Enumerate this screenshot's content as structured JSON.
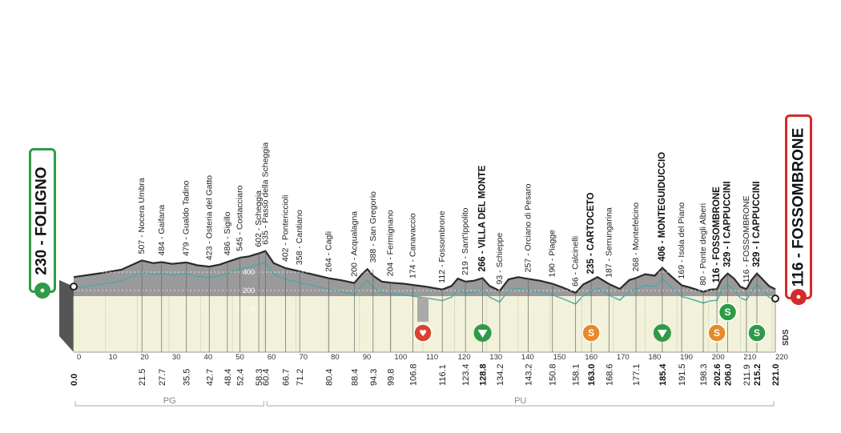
{
  "start": {
    "label": "230 - FOLIGNO",
    "icon": "bicycle-icon",
    "color": "#2f9a48"
  },
  "finish": {
    "label": "116 - FOSSOMBRONE",
    "icon": "bicycle-icon",
    "color": "#d42a2a"
  },
  "profile_colors": {
    "relief": "#9a9a9a",
    "relief_dark": "#2a2a2a",
    "plain": "#f2f2da",
    "line": "#4aa8a8"
  },
  "altitude_ticks": [
    "400",
    "200",
    "0"
  ],
  "km_ticks": [
    "0",
    "10",
    "20",
    "30",
    "40",
    "50",
    "60",
    "70",
    "80",
    "90",
    "100",
    "110",
    "120",
    "130",
    "140",
    "150",
    "160",
    "170",
    "180",
    "190",
    "200",
    "210",
    "220"
  ],
  "regions": [
    {
      "name": "PG"
    },
    {
      "name": "PU"
    }
  ],
  "sds_label": "SDS",
  "waypoints": [
    {
      "name": "Nocera Umbra",
      "alt": "507",
      "km": "21.5",
      "bold": false
    },
    {
      "name": "Gaifana",
      "alt": "484",
      "km": "27.7",
      "bold": false
    },
    {
      "name": "Gualdo Tadino",
      "alt": "479",
      "km": "35.5",
      "bold": false
    },
    {
      "name": "Osteria del Gatto",
      "alt": "423",
      "km": "42.7",
      "bold": false
    },
    {
      "name": "Sigillo",
      "alt": "486",
      "km": "48.4",
      "bold": false
    },
    {
      "name": "Costacciaro",
      "alt": "545",
      "km": "52.4",
      "bold": false
    },
    {
      "name": "Scheggia",
      "alt": "602",
      "km": "58.3",
      "bold": false
    },
    {
      "name": "Passo della Scheggia",
      "alt": "635",
      "km": "60.4",
      "bold": false
    },
    {
      "name": "Pontericcioli",
      "alt": "402",
      "km": "66.7",
      "bold": false
    },
    {
      "name": "Cantiano",
      "alt": "358",
      "km": "71.2",
      "bold": false
    },
    {
      "name": "Cagli",
      "alt": "264",
      "km": "80.4",
      "bold": false
    },
    {
      "name": "Acqualagna",
      "alt": "200",
      "km": "88.4",
      "bold": false
    },
    {
      "name": "San Gregorio",
      "alt": "388",
      "km": "94.3",
      "bold": false
    },
    {
      "name": "Fermignano",
      "alt": "204",
      "km": "99.8",
      "bold": false
    },
    {
      "name": "Canavaccio",
      "alt": "174",
      "km": "106.8",
      "bold": false
    },
    {
      "name": "Fossombrone",
      "alt": "112",
      "km": "116.1",
      "bold": false
    },
    {
      "name": "Sant'Ippolito",
      "alt": "219",
      "km": "123.4",
      "bold": false
    },
    {
      "name": "VILLA DEL MONTE",
      "alt": "266",
      "km": "128.8",
      "bold": true
    },
    {
      "name": "Schieppe",
      "alt": "93",
      "km": "134.2",
      "bold": false
    },
    {
      "name": "Orciano di Pesaro",
      "alt": "257",
      "km": "143.2",
      "bold": false
    },
    {
      "name": "Piagge",
      "alt": "190",
      "km": "150.8",
      "bold": false
    },
    {
      "name": "Calcinelli",
      "alt": "66",
      "km": "158.1",
      "bold": false
    },
    {
      "name": "CARTOCETO",
      "alt": "235",
      "km": "163.0",
      "bold": true
    },
    {
      "name": "Serrungarina",
      "alt": "187",
      "km": "168.6",
      "bold": false
    },
    {
      "name": "Montefelcino",
      "alt": "268",
      "km": "177.1",
      "bold": false
    },
    {
      "name": "MONTEGUIDUCCIO",
      "alt": "406",
      "km": "185.4",
      "bold": true
    },
    {
      "name": "Isola del Piano",
      "alt": "169",
      "km": "191.5",
      "bold": false
    },
    {
      "name": "Ponte degli Alberi",
      "alt": "80",
      "km": "198.3",
      "bold": false
    },
    {
      "name": "FOSSOMBRONE",
      "alt": "116",
      "km": "202.6",
      "bold": true
    },
    {
      "name": "I CAPPUCCINI",
      "alt": "329",
      "km": "206.0",
      "bold": true
    },
    {
      "name": "FOSSOMBRONE",
      "alt": "116",
      "km": "211.9",
      "bold": false
    },
    {
      "name": "I CAPPUCCINI",
      "alt": "329",
      "km": "215.2",
      "bold": true
    },
    {
      "name": "",
      "alt": "",
      "km": "221.0",
      "bold": true
    }
  ],
  "start_km": "0.0",
  "markers": [
    {
      "type": "feed-zone",
      "icon": "feed-zone-icon",
      "glyph": "♥",
      "km_ref": "110",
      "color": "#d8452e"
    },
    {
      "type": "gpm",
      "icon": "gpm-triangle-icon",
      "km_ref": "128.8",
      "color": "#2f9a48"
    },
    {
      "type": "sprint",
      "icon": "sprint-s-icon",
      "glyph": "S",
      "km_ref": "163.0",
      "color": "#e8892a"
    },
    {
      "type": "gpm",
      "icon": "gpm-triangle-icon",
      "km_ref": "185.4",
      "color": "#2f9a48"
    },
    {
      "type": "sprint",
      "icon": "sprint-s-icon",
      "glyph": "S",
      "km_ref": "202.6",
      "color": "#e8892a"
    },
    {
      "type": "gpm-s",
      "icon": "gpm-s-icon",
      "glyph": "S",
      "km_ref": "206.0",
      "color": "#2f9a48"
    },
    {
      "type": "gpm-s",
      "icon": "gpm-s-icon",
      "glyph": "S",
      "km_ref": "215.2",
      "color": "#2f9a48"
    }
  ]
}
